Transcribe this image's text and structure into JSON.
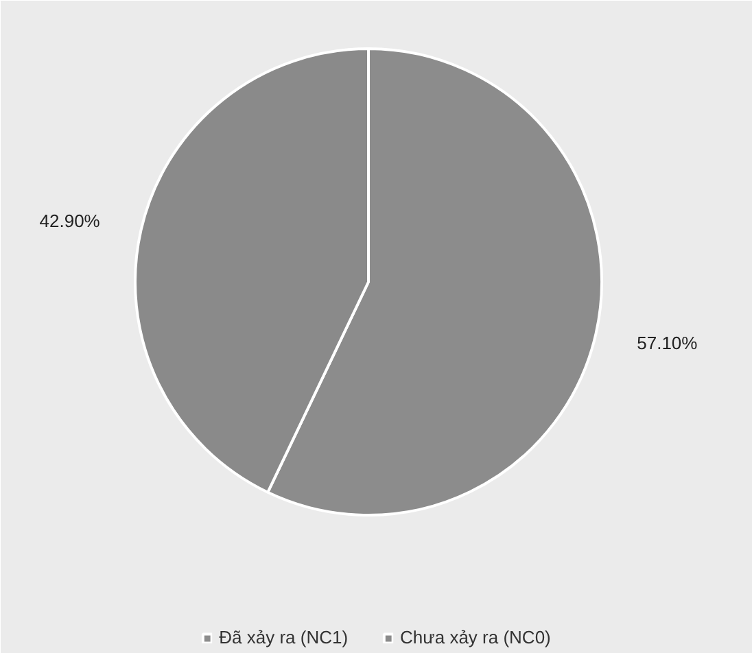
{
  "chart_data": {
    "type": "pie",
    "categories": [
      "Đã xảy ra (NC1)",
      "Chưa xảy ra (NC0)"
    ],
    "values": [
      57.1,
      42.9
    ],
    "colors": [
      "#8c8c8c",
      "#8a8a8a"
    ],
    "value_labels": [
      "57.10%",
      "42.90%"
    ],
    "legend": "bottom"
  }
}
